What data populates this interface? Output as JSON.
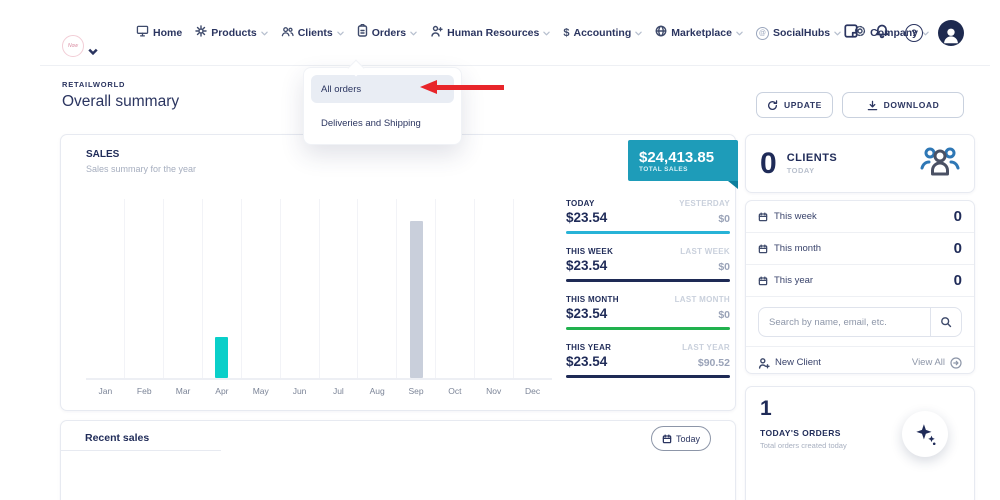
{
  "nav": {
    "logo_text": "Now",
    "items": [
      {
        "label": "Home"
      },
      {
        "label": "Products"
      },
      {
        "label": "Clients"
      },
      {
        "label": "Orders"
      },
      {
        "label": "Human Resources"
      },
      {
        "label": "Accounting"
      },
      {
        "label": "Marketplace"
      },
      {
        "label": "SocialHubs"
      },
      {
        "label": "Company"
      }
    ],
    "help_glyph": "?",
    "at_glyph": "@",
    "dollar_glyph": "$"
  },
  "orders_dropdown": {
    "items": [
      {
        "label": "All orders",
        "highlighted": true
      },
      {
        "label": "Deliveries and Shipping",
        "highlighted": false
      }
    ]
  },
  "annotation_arrow": {
    "color": "#e8252a",
    "points_to": "All orders"
  },
  "page_header": {
    "breadcrumb": "RETAILWORLD",
    "title": "Overall summary",
    "update_button": "UPDATE",
    "download_button": "DOWNLOAD"
  },
  "sales_card": {
    "title": "SALES",
    "subtitle": "Sales summary for the year",
    "total_badge": {
      "amount": "$24,413.85",
      "label": "TOTAL SALES",
      "bg": "#1e9cb9"
    },
    "stats": [
      {
        "period": "TODAY",
        "value": "$23.54",
        "compare_period": "YESTERDAY",
        "compare_value": "$0",
        "underline_color": "#27b3d7"
      },
      {
        "period": "THIS WEEK",
        "value": "$23.54",
        "compare_period": "LAST WEEK",
        "compare_value": "$0",
        "underline_color": "#1e2a55"
      },
      {
        "period": "THIS MONTH",
        "value": "$23.54",
        "compare_period": "LAST MONTH",
        "compare_value": "$0",
        "underline_color": "#21b14e"
      },
      {
        "period": "THIS YEAR",
        "value": "$23.54",
        "compare_period": "LAST YEAR",
        "compare_value": "$90.52",
        "underline_color": "#1e2a55"
      }
    ]
  },
  "chart_data": {
    "type": "bar",
    "title": "SALES",
    "subtitle": "Sales summary for the year",
    "categories": [
      "Jan",
      "Feb",
      "Mar",
      "Apr",
      "May",
      "Jun",
      "Jul",
      "Aug",
      "Sep",
      "Oct",
      "Nov",
      "Dec"
    ],
    "values": [
      0,
      0,
      0,
      23.54,
      0,
      0,
      0,
      0,
      90.52,
      0,
      0,
      0
    ],
    "bar_colors": [
      "",
      "",
      "",
      "#0acfc9",
      "",
      "",
      "",
      "",
      "#c9cfdb",
      "",
      "",
      ""
    ],
    "xlabel": "",
    "ylabel": "",
    "gridlines": "vertical",
    "legend": "none"
  },
  "clients_card": {
    "count": "0",
    "label": "CLIENTS",
    "sublabel": "TODAY",
    "rows": [
      {
        "label": "This week",
        "value": "0"
      },
      {
        "label": "This month",
        "value": "0"
      },
      {
        "label": "This year",
        "value": "0"
      }
    ],
    "search_placeholder": "Search by name, email, etc.",
    "new_client_label": "New Client",
    "view_all_label": "View All"
  },
  "todays_orders_card": {
    "count": "1",
    "label": "TODAY'S ORDERS",
    "sublabel": "Total orders created today"
  },
  "recent_sales_card": {
    "title": "Recent sales",
    "filter_button": "Today"
  }
}
